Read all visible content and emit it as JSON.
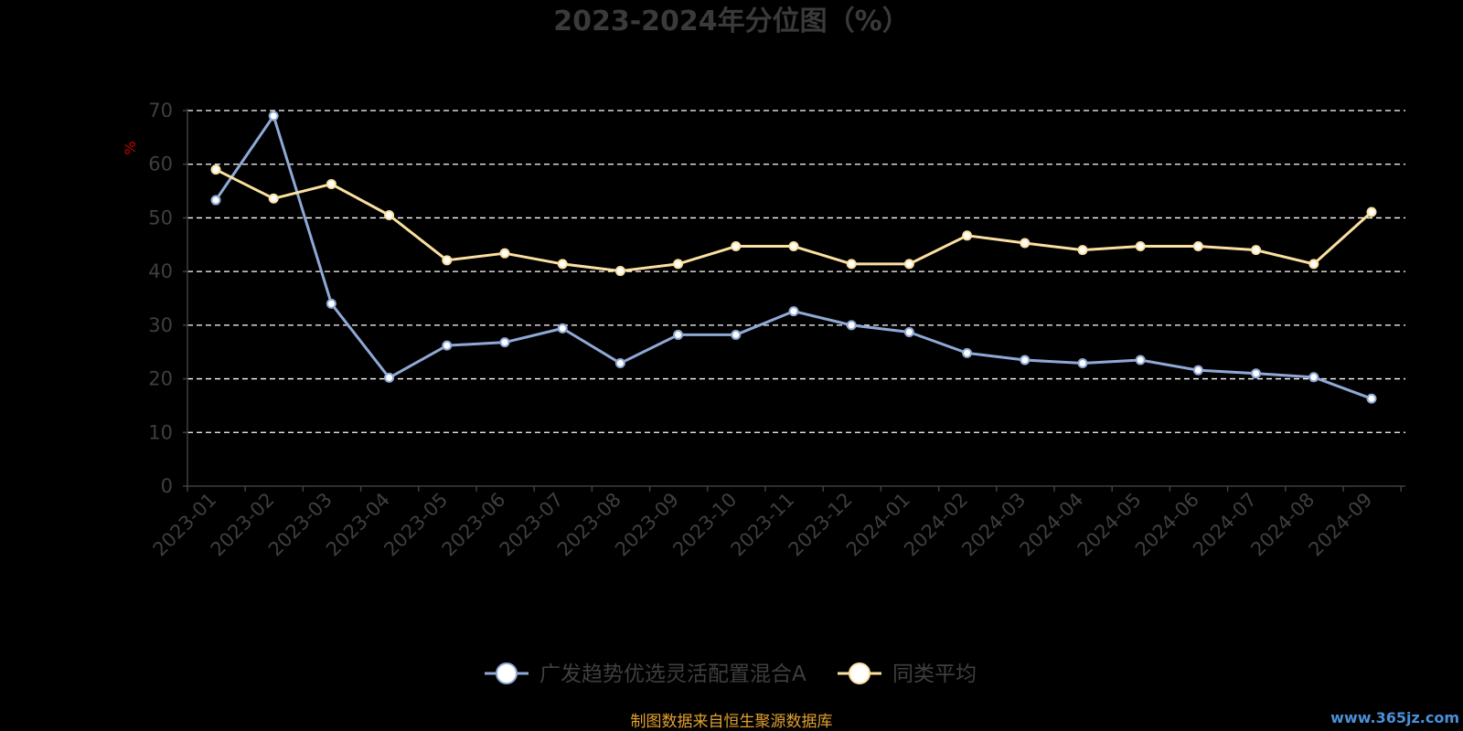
{
  "chart_data": {
    "type": "line",
    "title": "2023-2024年分位图（%）",
    "ylabel": "%",
    "ylim": [
      0,
      70
    ],
    "yticks": [
      0,
      10,
      20,
      30,
      40,
      50,
      60,
      70
    ],
    "grid": true,
    "legend_position": "bottom-center",
    "categories": [
      "2023-01",
      "2023-02",
      "2023-03",
      "2023-04",
      "2023-05",
      "2023-06",
      "2023-07",
      "2023-08",
      "2023-09",
      "2023-10",
      "2023-11",
      "2023-12",
      "2024-01",
      "2024-02",
      "2024-03",
      "2024-04",
      "2024-05",
      "2024-06",
      "2024-07",
      "2024-08",
      "2024-09"
    ],
    "series": [
      {
        "name": "广发趋势优选灵活配置混合A",
        "color": "#8fa9d6",
        "values": [
          53.3,
          69.0,
          34.0,
          20.2,
          26.2,
          26.8,
          29.4,
          22.9,
          28.2,
          28.2,
          32.6,
          30.0,
          28.7,
          24.8,
          23.5,
          22.9,
          23.5,
          21.6,
          21.0,
          20.3,
          16.3
        ]
      },
      {
        "name": "同类平均",
        "color": "#fbe0a0",
        "values": [
          59.0,
          53.6,
          56.3,
          50.5,
          42.1,
          43.4,
          41.4,
          40.1,
          41.4,
          44.7,
          44.7,
          41.4,
          41.4,
          46.7,
          45.3,
          44.0,
          44.7,
          44.7,
          44.0,
          41.4,
          51.1
        ]
      }
    ]
  },
  "footer": {
    "source_text": "制图数据来自恒生聚源数据库",
    "source_color": "#e0a030"
  },
  "watermark": {
    "text": "www.365jz.com",
    "color": "#4a90d9"
  },
  "colors": {
    "background": "#000000",
    "grid": "#ffffff",
    "axis": "#3f3f3f",
    "ylabel": "#cc0000"
  }
}
